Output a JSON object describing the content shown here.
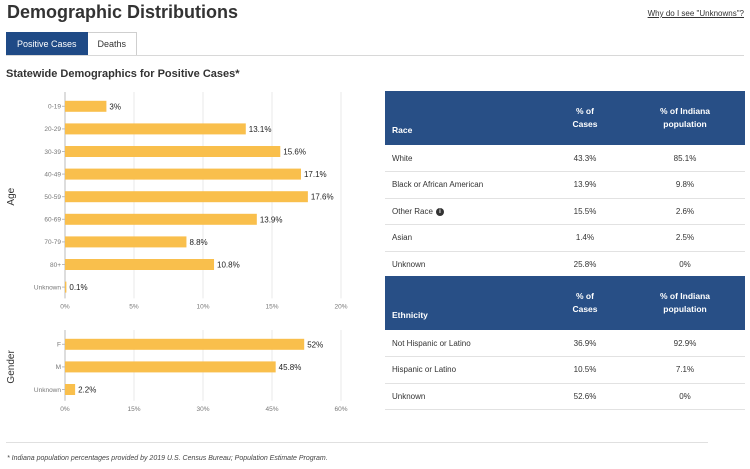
{
  "header": {
    "title": "Demographic Distributions",
    "help_link": "Why do I see \"Unknowns\"?"
  },
  "tabs": [
    {
      "label": "Positive Cases",
      "active": true
    },
    {
      "label": "Deaths",
      "active": false
    }
  ],
  "section_title": "Statewide Demographics for Positive Cases*",
  "chart_data": [
    {
      "type": "bar",
      "orientation": "horizontal",
      "ylabel": "Age",
      "categories": [
        "0-19",
        "20-29",
        "30-39",
        "40-49",
        "50-59",
        "60-69",
        "70-79",
        "80+",
        "Unknown"
      ],
      "values": [
        3,
        13.1,
        15.6,
        17.1,
        17.6,
        13.9,
        8.8,
        10.8,
        0.1
      ],
      "labels": [
        "3%",
        "13.1%",
        "15.6%",
        "17.1%",
        "17.6%",
        "13.9%",
        "8.8%",
        "10.8%",
        "0.1%"
      ],
      "xlim": [
        0,
        20
      ],
      "xticks": [
        "0%",
        "5%",
        "10%",
        "15%",
        "20%"
      ],
      "color": "#f9bf4c"
    },
    {
      "type": "bar",
      "orientation": "horizontal",
      "ylabel": "Gender",
      "categories": [
        "F",
        "M",
        "Unknown"
      ],
      "values": [
        52,
        45.8,
        2.2
      ],
      "labels": [
        "52%",
        "45.8%",
        "2.2%"
      ],
      "xlim": [
        0,
        60
      ],
      "xticks": [
        "0%",
        "15%",
        "30%",
        "45%",
        "60%"
      ],
      "color": "#f9bf4c"
    }
  ],
  "race_table": {
    "headers": [
      "Race",
      "% of Cases",
      "% of Indiana population"
    ],
    "rows": [
      {
        "label": "White",
        "cases": "43.3%",
        "population": "85.1%",
        "info": false
      },
      {
        "label": "Black or African American",
        "cases": "13.9%",
        "population": "9.8%",
        "info": false
      },
      {
        "label": "Other Race",
        "cases": "15.5%",
        "population": "2.6%",
        "info": true
      },
      {
        "label": "Asian",
        "cases": "1.4%",
        "population": "2.5%",
        "info": false
      },
      {
        "label": "Unknown",
        "cases": "25.8%",
        "population": "0%",
        "info": false
      }
    ]
  },
  "ethnicity_table": {
    "headers": [
      "Ethnicity",
      "% of Cases",
      "% of Indiana population"
    ],
    "rows": [
      {
        "label": "Not Hispanic or Latino",
        "cases": "36.9%",
        "population": "92.9%",
        "info": false
      },
      {
        "label": "Hispanic or Latino",
        "cases": "10.5%",
        "population": "7.1%",
        "info": false
      },
      {
        "label": "Unknown",
        "cases": "52.6%",
        "population": "0%",
        "info": false
      }
    ]
  },
  "info_icon_glyph": "i",
  "footnote": "* Indiana population percentages provided by 2019 U.S. Census Bureau; Population Estimate Program."
}
